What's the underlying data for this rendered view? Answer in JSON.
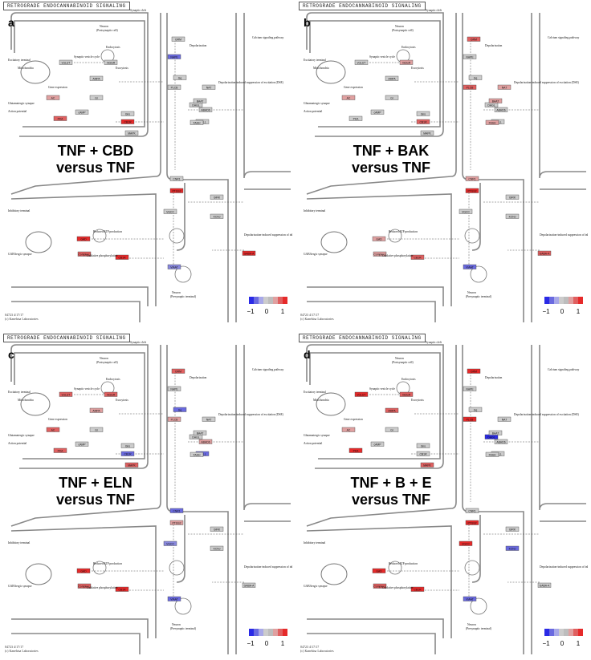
{
  "common": {
    "header": "RETROGRADE ENDOCANNABINOID SIGNALING",
    "synaptic_cleft": "Synaptic cleft",
    "neuron_post": "Neuron",
    "postsynaptic_cell": "(Postsynaptic cell)",
    "excitatory_terminal": "Excitatory terminal",
    "inhibitory_terminal": "Inhibitory terminal",
    "mitochondria": "Mitochondria",
    "endocytosis": "Endocytosis",
    "exocytosis": "Exocytosis",
    "synaptic_vesicle_cycle": "Synaptic vesicle cycle",
    "calcium_pathway": "Calcium signaling pathway",
    "depolarization": "Depolarization",
    "dsi_excitation": "Depolarization-induced suppression of excitation (DSE)",
    "dsi_inhibition": "Depolarization-induced suppression of inhibition (DSI)",
    "gene_expression": "Gene expression",
    "glutamatergic": "Glutamatergic synapse",
    "action_potential": "Action potential",
    "gabaergic": "GABAergic synapse",
    "reduced_atp": "Reduced ATP production",
    "oxidative": "Oxidative phosphorylation",
    "neuron_pre": "Neuron",
    "presynaptic_terminal": "(Presynaptic terminal)",
    "footer_id": "04723 4/17/17",
    "footer_copy": "(c) Kanehisa Laboratories",
    "scale_labels": [
      "−1",
      "0",
      "1"
    ],
    "scale_colors": [
      "#2a2ae6",
      "#6a6ae0",
      "#a8a8e8",
      "#cccccc",
      "#bdbdbd",
      "#e0a0a0",
      "#e06060",
      "#e62a2a"
    ]
  },
  "panels": [
    {
      "letter": "a",
      "title_line1": "TNF + CBD",
      "title_line2": "versus TNF"
    },
    {
      "letter": "b",
      "title_line1": "TNF + BAK",
      "title_line2": "versus TNF"
    },
    {
      "letter": "c",
      "title_line1": "TNF + ELN",
      "title_line2": "versus TNF"
    },
    {
      "letter": "d",
      "title_line1": "TNF + B + E",
      "title_line2": "versus TNF"
    }
  ],
  "gene_labels": [
    "vGLUT",
    "mGluR",
    "Gq",
    "PLCB",
    "NAPE",
    "DAGL",
    "AMPA",
    "GRM",
    "CB1R",
    "Gi/o",
    "AC",
    "PKA",
    "MAPK",
    "CNR1",
    "GIRK",
    "KCNJ",
    "VGCC",
    "NAT",
    "ABHD6",
    "MGLL",
    "PTGS2",
    "FAAH",
    "GABA-A",
    "GAD",
    "VIAAT",
    "Complex I",
    "CB1R",
    "BAAT",
    "Gi",
    "cAMP"
  ],
  "panel_colors": [
    [
      "#cccccc",
      "#cccccc",
      "#cccccc",
      "#cccccc",
      "#6a6ae0",
      "#cccccc",
      "#cccccc",
      "#cccccc",
      "#e62a2a",
      "#cccccc",
      "#e0a0a0",
      "#e06060",
      "#cccccc",
      "#cccccc",
      "#cccccc",
      "#cccccc",
      "#cccccc",
      "#cccccc",
      "#cccccc",
      "#cccccc",
      "#e62a2a",
      "#cccccc",
      "#e62a2a",
      "#e62a2a",
      "#8888dd",
      "#e06060",
      "#e62a2a",
      "#cccccc",
      "#cccccc",
      "#cccccc"
    ],
    [
      "#cccccc",
      "#e0a0a0",
      "#cccccc",
      "#e06060",
      "#cccccc",
      "#cccccc",
      "#cccccc",
      "#e06060",
      "#e06060",
      "#cccccc",
      "#e0a0a0",
      "#cccccc",
      "#cccccc",
      "#e0a0a0",
      "#cccccc",
      "#cccccc",
      "#cccccc",
      "#e0a0a0",
      "#cccccc",
      "#cccccc",
      "#e62a2a",
      "#e0a0a0",
      "#e06060",
      "#e0a0a0",
      "#6a6ae0",
      "#e0a0a0",
      "#e06060",
      "#e0a0a0",
      "#cccccc",
      "#cccccc"
    ],
    [
      "#e06060",
      "#e06060",
      "#6a6ae0",
      "#e0a0a0",
      "#cccccc",
      "#cccccc",
      "#e0a0a0",
      "#e06060",
      "#6a6ae0",
      "#cccccc",
      "#e06060",
      "#e06060",
      "#e06060",
      "#6a6ae0",
      "#cccccc",
      "#cccccc",
      "#8888dd",
      "#cccccc",
      "#e0a0a0",
      "#6a6ae0",
      "#e0a0a0",
      "#cccccc",
      "#cccccc",
      "#e62a2a",
      "#6a6ae0",
      "#e06060",
      "#e62a2a",
      "#cccccc",
      "#cccccc",
      "#cccccc"
    ],
    [
      "#e62a2a",
      "#e06060",
      "#cccccc",
      "#e62a2a",
      "#cccccc",
      "#2a2ae6",
      "#e06060",
      "#e62a2a",
      "#cccccc",
      "#cccccc",
      "#e0a0a0",
      "#e62a2a",
      "#e06060",
      "#cccccc",
      "#cccccc",
      "#6a6ae0",
      "#e62a2a",
      "#cccccc",
      "#cccccc",
      "#cccccc",
      "#e62a2a",
      "#cccccc",
      "#cccccc",
      "#e62a2a",
      "#6a6ae0",
      "#e06060",
      "#e62a2a",
      "#cccccc",
      "#cccccc",
      "#cccccc"
    ]
  ]
}
